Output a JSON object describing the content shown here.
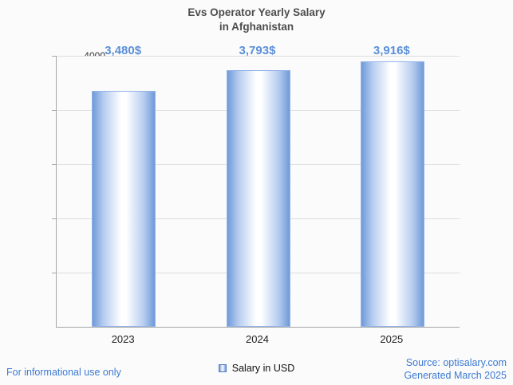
{
  "chart_data": {
    "type": "bar",
    "title": "Evs Operator Yearly Salary in Afghanistan",
    "title_lines": [
      "Evs Operator Yearly Salary",
      "in Afghanistan"
    ],
    "categories": [
      "2023",
      "2024",
      "2025"
    ],
    "series": [
      {
        "name": "Salary in USD",
        "values": [
          3480,
          3793,
          3916
        ]
      }
    ],
    "data_labels": [
      "3,480$",
      "3,793$",
      "3,916$"
    ],
    "xlabel": "",
    "ylabel": "",
    "ylim": [
      0,
      4000
    ],
    "yticks": [
      800,
      1600,
      2400,
      3200,
      4000
    ],
    "grid": true,
    "legend": "Salary in USD",
    "legend_position": "bottom",
    "bar_color": "#7fa8e4",
    "value_label_color": "#5b8fd8"
  },
  "footer": {
    "disclaimer": "For informational use only",
    "source": "Source: optisalary.com",
    "generated": "Generated March 2025"
  },
  "colors": {
    "accent_blue": "#3d7ad1",
    "title_gray": "#4d4d4d"
  }
}
